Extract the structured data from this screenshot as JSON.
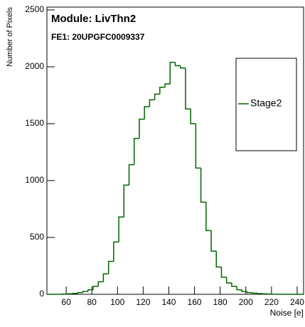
{
  "chart_data": {
    "type": "histogram",
    "title": "Module: LivThn2",
    "subtitle": "FE1: 20UPGFC0009337",
    "x_label": "Noise [e]",
    "y_label": "Number of Pixels",
    "bins": [
      45,
      49,
      53,
      57,
      61,
      65,
      69,
      73,
      77,
      81,
      85,
      89,
      93,
      97,
      101,
      105,
      109,
      113,
      117,
      121,
      125,
      129,
      133,
      137,
      141,
      145,
      149,
      153,
      157,
      161,
      165,
      169,
      173,
      177,
      181,
      185,
      189,
      193,
      197,
      201,
      205,
      209,
      213,
      217,
      221,
      225,
      229,
      233,
      237,
      241,
      245
    ],
    "series": [
      {
        "name": "Stage2",
        "color": "#006400",
        "values": [
          0,
          0,
          0,
          2,
          5,
          8,
          15,
          25,
          40,
          70,
          110,
          180,
          290,
          460,
          680,
          960,
          1140,
          1370,
          1540,
          1650,
          1710,
          1760,
          1820,
          1850,
          2040,
          2010,
          1990,
          1630,
          1500,
          1110,
          810,
          560,
          380,
          240,
          150,
          100,
          70,
          40,
          25,
          15,
          10,
          6,
          4,
          2,
          1,
          0,
          0,
          0,
          0,
          0
        ]
      }
    ],
    "xlim": [
      45,
      245
    ],
    "xticks": [
      60,
      80,
      100,
      120,
      140,
      160,
      180,
      200,
      220,
      240
    ],
    "ylim": [
      0,
      2525
    ],
    "yticks": [
      0,
      500,
      1000,
      1500,
      2000,
      2500
    ]
  }
}
